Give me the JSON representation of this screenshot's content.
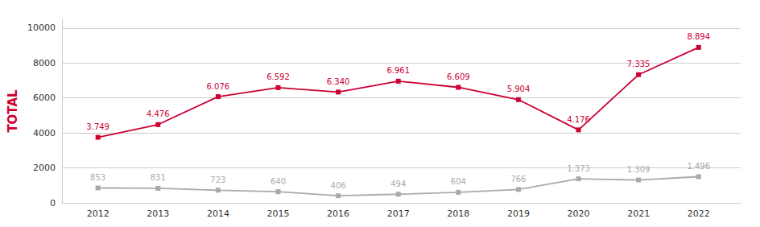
{
  "chart_data": {
    "type": "line",
    "x": [
      2012,
      2013,
      2014,
      2015,
      2016,
      2017,
      2018,
      2019,
      2020,
      2021,
      2022
    ],
    "series": [
      {
        "color": "#CC0033",
        "values": [
          3749,
          4476,
          6076,
          6592,
          6340,
          6961,
          6609,
          5904,
          4176,
          7335,
          8894
        ],
        "value_labels": [
          "3.749",
          "4.476",
          "6.076",
          "6.592",
          "6.340",
          "6.961",
          "6.609",
          "5.904",
          "4.176",
          "7.335",
          "8.894"
        ]
      },
      {
        "color": "#AAAAAA",
        "values": [
          853,
          831,
          723,
          640,
          406,
          494,
          604,
          766,
          1373,
          1309,
          1496
        ],
        "value_labels": [
          "853",
          "831",
          "723",
          "640",
          "406",
          "494",
          "604",
          "766",
          "1.373",
          "1.309",
          "1.496"
        ]
      }
    ],
    "ylabel": "TOTAL",
    "ylabel_color": "#CC0033",
    "xlim": [
      2011.4,
      2022.7
    ],
    "xticks": [
      2012,
      2013,
      2014,
      2015,
      2016,
      2017,
      2018,
      2019,
      2020,
      2021,
      2022
    ],
    "ylim": [
      0,
      10500
    ],
    "yticks": [
      0,
      2000,
      4000,
      6000,
      8000,
      10000
    ],
    "grid": true,
    "data_labels": true,
    "marker": "square"
  }
}
